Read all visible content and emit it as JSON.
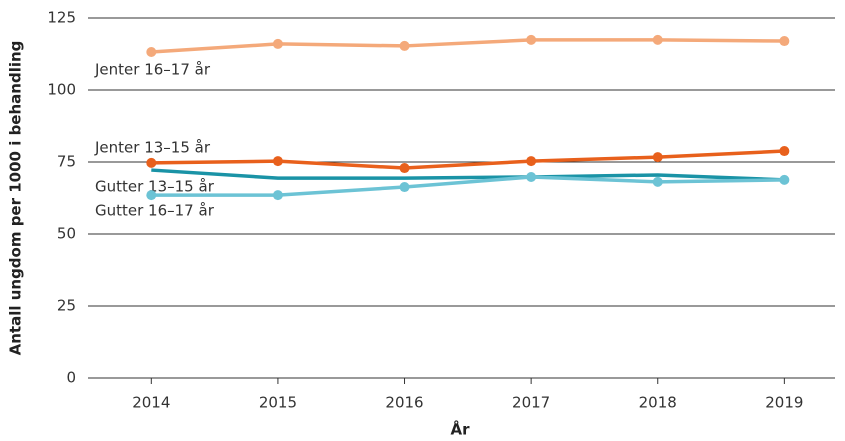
{
  "chart_data": {
    "type": "line",
    "x_label": "År",
    "y_label": "Antall ungdom per 1000 i behandling",
    "x": [
      2014,
      2015,
      2016,
      2017,
      2018,
      2019
    ],
    "series": [
      {
        "name": "Jenter 16–17 år",
        "color": "#f4a97a",
        "markers": true,
        "values": [
          113.2,
          116,
          115.3,
          117.4,
          117.4,
          117
        ]
      },
      {
        "name": "Jenter 13–15 år",
        "color": "#e8601c",
        "markers": true,
        "values": [
          74.7,
          75.3,
          72.9,
          75.3,
          76.7,
          78.8
        ]
      },
      {
        "name": "Gutter 13–15 år",
        "color": "#1a93a6",
        "markers": false,
        "values": [
          72.2,
          69.4,
          69.4,
          69.8,
          70.5,
          68.8
        ]
      },
      {
        "name": "Gutter 16–17 år",
        "color": "#6cc3d5",
        "markers": true,
        "values": [
          63.5,
          63.5,
          66.3,
          69.8,
          68.1,
          68.8
        ]
      }
    ],
    "xlim": [
      2013.5,
      2019.4
    ],
    "xticks": [
      2014,
      2015,
      2016,
      2017,
      2018,
      2019
    ],
    "ylim": [
      0,
      125
    ],
    "yticks": [
      0,
      25,
      50,
      75,
      100,
      125
    ],
    "grid": true
  }
}
